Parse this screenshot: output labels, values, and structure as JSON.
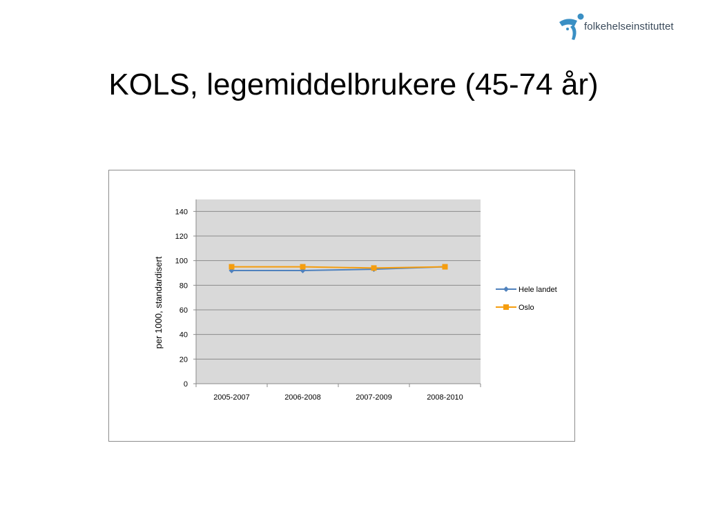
{
  "header": {
    "logo_text": "folkehelseinstituttet",
    "logo_icon": "figure-icon",
    "logo_color": "#3a8fc4"
  },
  "slide": {
    "title": "KOLS, legemiddelbrukere (45-74 år)"
  },
  "chart_data": {
    "type": "line",
    "title": "",
    "xlabel": "",
    "ylabel": "per 1000, standardisert",
    "categories": [
      "2005-2007",
      "2006-2008",
      "2007-2009",
      "2008-2010"
    ],
    "ylim": [
      0,
      140
    ],
    "yticks": [
      0,
      20,
      40,
      60,
      80,
      100,
      120,
      140
    ],
    "grid": true,
    "legend_position": "right",
    "series": [
      {
        "name": "Hele landet",
        "values": [
          92,
          92,
          93,
          95
        ],
        "color": "#4f81bd",
        "marker": "diamond"
      },
      {
        "name": "Oslo",
        "values": [
          95,
          95,
          94,
          95
        ],
        "color": "#f59d0e",
        "marker": "square"
      }
    ],
    "plot_background": "#d9d9d9"
  }
}
